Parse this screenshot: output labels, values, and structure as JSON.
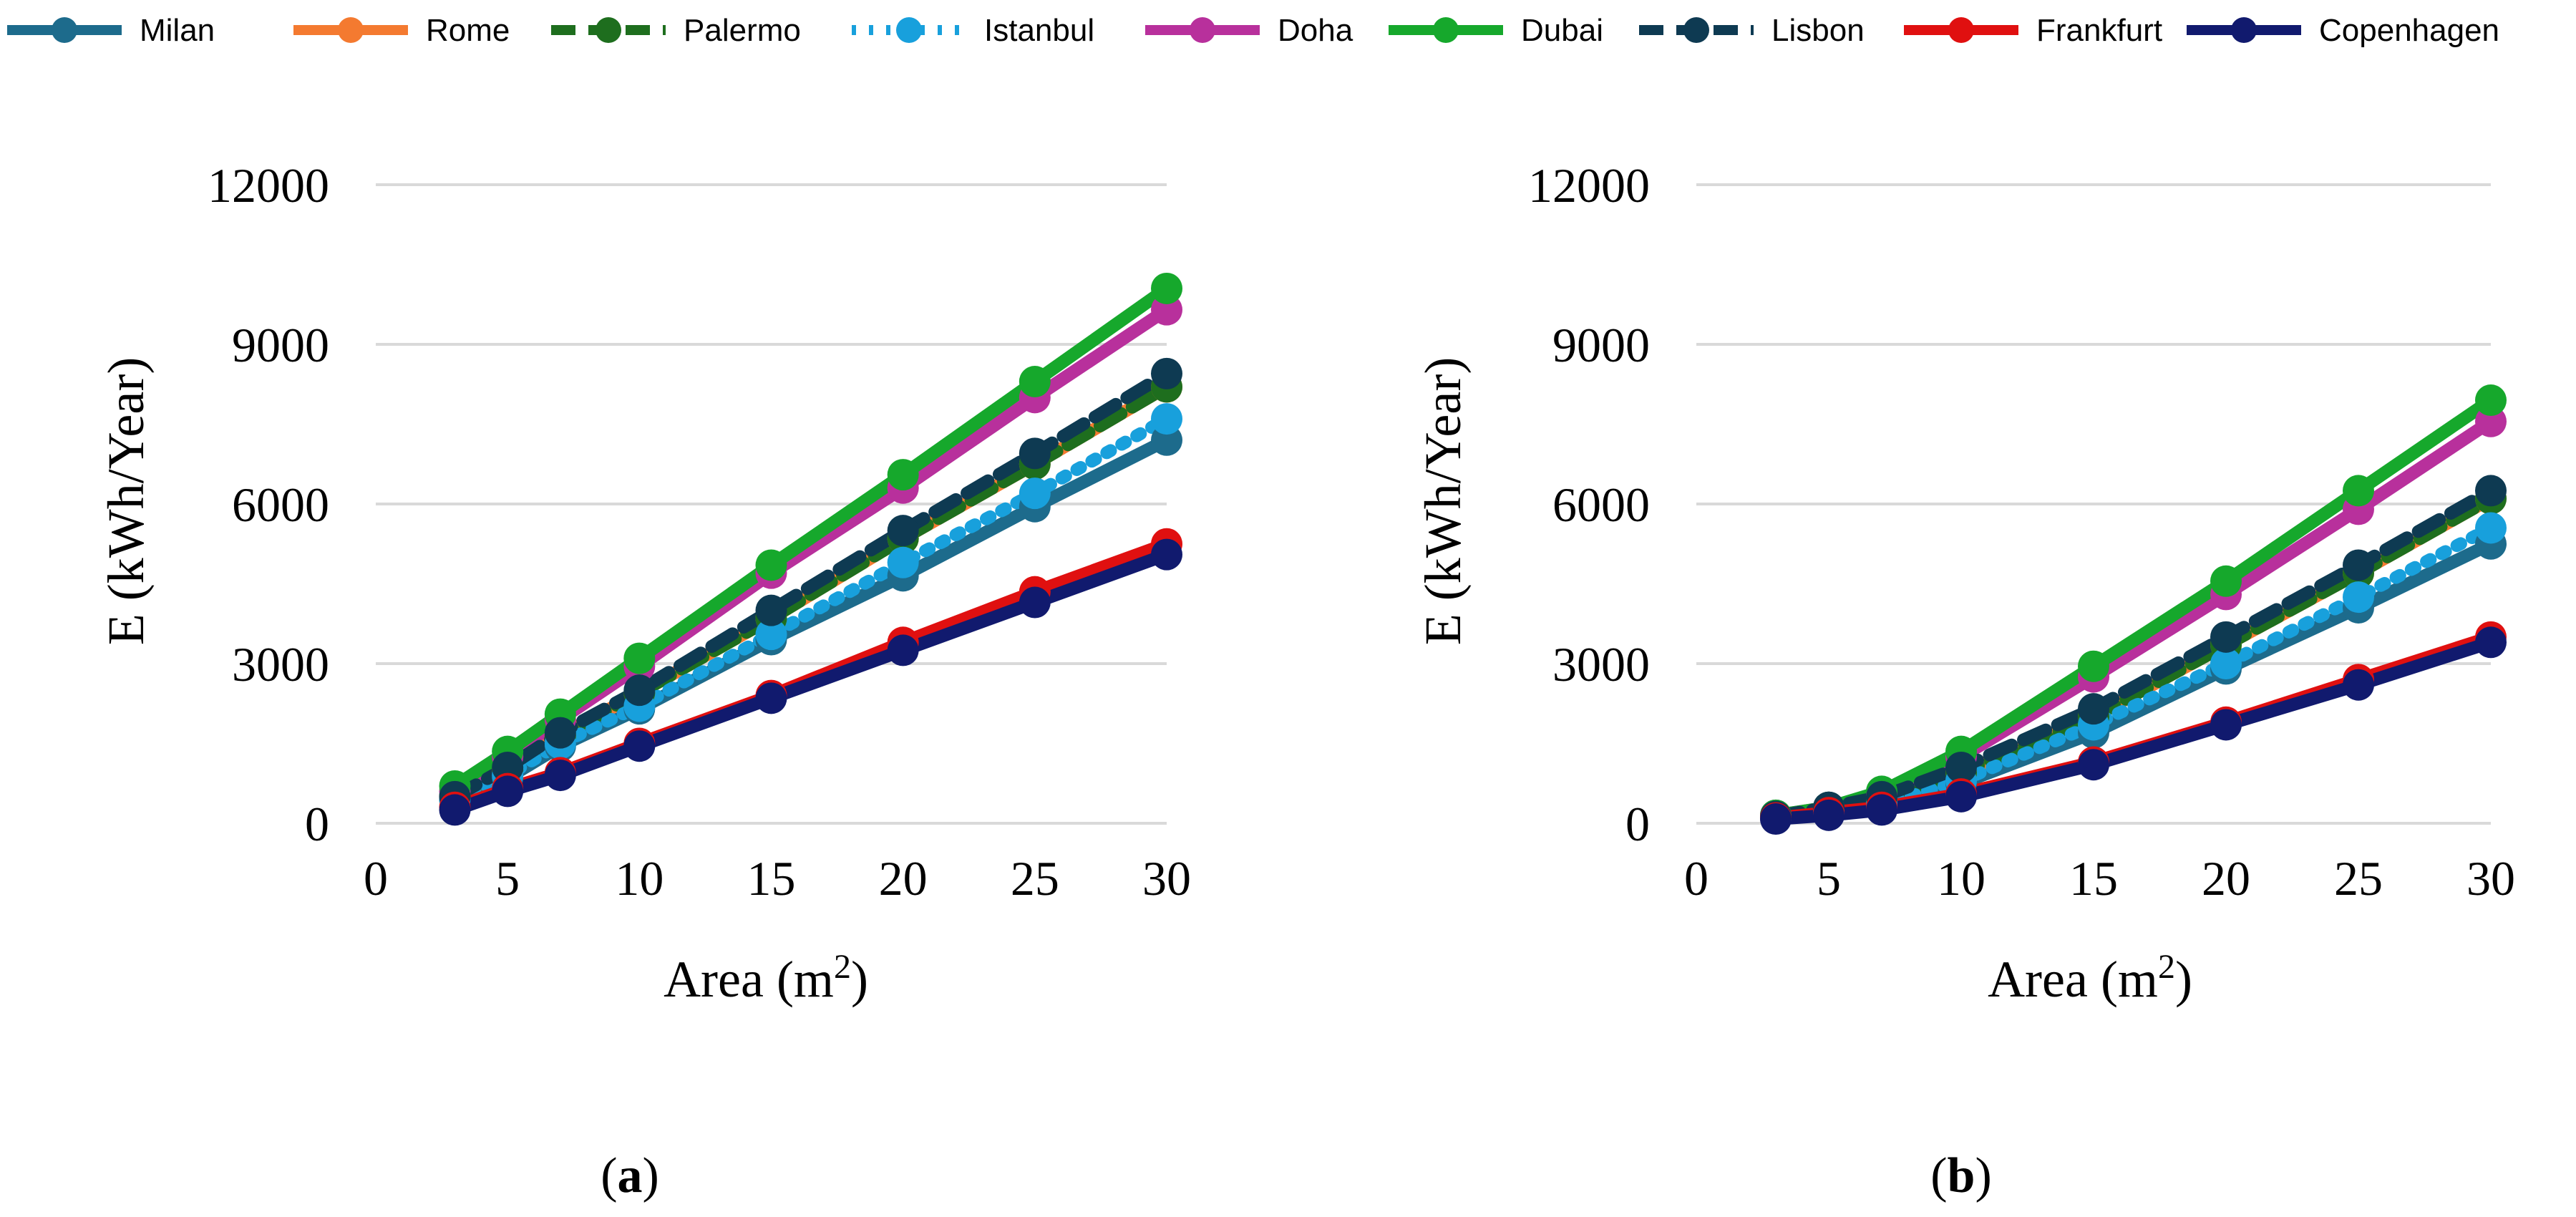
{
  "colors": {
    "Milan": "#1d6b8c",
    "Rome": "#f47a30",
    "Palermo": "#1e6e1e",
    "Istanbul": "#18a0dc",
    "Doha": "#b8309c",
    "Dubai": "#16a82c",
    "Lisbon": "#0e3a52",
    "Frankfurt": "#e01010",
    "Copenhagen": "#111a6e",
    "grid": "#d9d9d9"
  },
  "legend": [
    {
      "name": "Milan",
      "style": "solid"
    },
    {
      "name": "Rome",
      "style": "solid"
    },
    {
      "name": "Palermo",
      "style": "dashed"
    },
    {
      "name": "Istanbul",
      "style": "dotted"
    },
    {
      "name": "Doha",
      "style": "solid"
    },
    {
      "name": "Dubai",
      "style": "solid"
    },
    {
      "name": "Lisbon",
      "style": "dashed"
    },
    {
      "name": "Frankfurt",
      "style": "solid"
    },
    {
      "name": "Copenhagen",
      "style": "solid"
    }
  ],
  "chart_data": [
    {
      "type": "line",
      "panel_label": "a",
      "xlabel": "Area (m",
      "xlabel_sup": "2",
      "xlabel_suffix": ")",
      "ylabel": "E (kWh/Year)",
      "xlim": [
        0,
        30
      ],
      "ylim": [
        0,
        12000
      ],
      "xticks": [
        0,
        5,
        10,
        15,
        20,
        25,
        30
      ],
      "yticks": [
        0,
        3000,
        6000,
        9000,
        12000
      ],
      "grid": true,
      "x": [
        3,
        5,
        7,
        10,
        15,
        20,
        25,
        30
      ],
      "series": [
        {
          "name": "Milan",
          "values": [
            450,
            850,
            1450,
            2150,
            3450,
            4650,
            5950,
            7200
          ]
        },
        {
          "name": "Rome",
          "values": [
            500,
            1000,
            1650,
            2450,
            3850,
            5350,
            6750,
            8200
          ]
        },
        {
          "name": "Palermo",
          "values": [
            500,
            1000,
            1650,
            2450,
            3850,
            5350,
            6750,
            8200
          ]
        },
        {
          "name": "Istanbul",
          "values": [
            450,
            900,
            1500,
            2200,
            3550,
            4900,
            6200,
            7600
          ]
        },
        {
          "name": "Doha",
          "values": [
            600,
            1250,
            1950,
            2950,
            4700,
            6300,
            8000,
            9650
          ]
        },
        {
          "name": "Dubai",
          "values": [
            700,
            1350,
            2050,
            3100,
            4850,
            6550,
            8300,
            10050
          ]
        },
        {
          "name": "Lisbon",
          "values": [
            500,
            1050,
            1700,
            2500,
            4000,
            5500,
            6950,
            8450
          ]
        },
        {
          "name": "Frankfurt",
          "values": [
            300,
            650,
            950,
            1500,
            2400,
            3400,
            4350,
            5250
          ]
        },
        {
          "name": "Copenhagen",
          "values": [
            250,
            600,
            900,
            1450,
            2350,
            3250,
            4150,
            5050
          ]
        }
      ]
    },
    {
      "type": "line",
      "panel_label": "b",
      "xlabel": "Area (m",
      "xlabel_sup": "2",
      "xlabel_suffix": ")",
      "ylabel": "E (kWh/Year)",
      "xlim": [
        0,
        30
      ],
      "ylim": [
        0,
        12000
      ],
      "xticks": [
        0,
        5,
        10,
        15,
        20,
        25,
        30
      ],
      "yticks": [
        0,
        3000,
        6000,
        9000,
        12000
      ],
      "grid": true,
      "x": [
        3,
        5,
        7,
        10,
        15,
        20,
        25,
        30
      ],
      "series": [
        {
          "name": "Milan",
          "values": [
            100,
            200,
            300,
            750,
            1700,
            2900,
            4050,
            5250
          ]
        },
        {
          "name": "Rome",
          "values": [
            120,
            250,
            400,
            950,
            2000,
            3350,
            4700,
            6100
          ]
        },
        {
          "name": "Palermo",
          "values": [
            120,
            250,
            400,
            950,
            2000,
            3350,
            4700,
            6100
          ]
        },
        {
          "name": "Istanbul",
          "values": [
            100,
            200,
            350,
            800,
            1850,
            3000,
            4250,
            5550
          ]
        },
        {
          "name": "Doha",
          "values": [
            150,
            300,
            550,
            1250,
            2750,
            4300,
            5900,
            7550
          ]
        },
        {
          "name": "Dubai",
          "values": [
            150,
            300,
            600,
            1350,
            2950,
            4550,
            6250,
            7950
          ]
        },
        {
          "name": "Lisbon",
          "values": [
            130,
            300,
            500,
            1050,
            2150,
            3500,
            4850,
            6250
          ]
        },
        {
          "name": "Frankfurt",
          "values": [
            100,
            200,
            300,
            550,
            1150,
            1900,
            2700,
            3500
          ]
        },
        {
          "name": "Copenhagen",
          "values": [
            80,
            150,
            250,
            500,
            1100,
            1850,
            2600,
            3400
          ]
        }
      ]
    }
  ]
}
